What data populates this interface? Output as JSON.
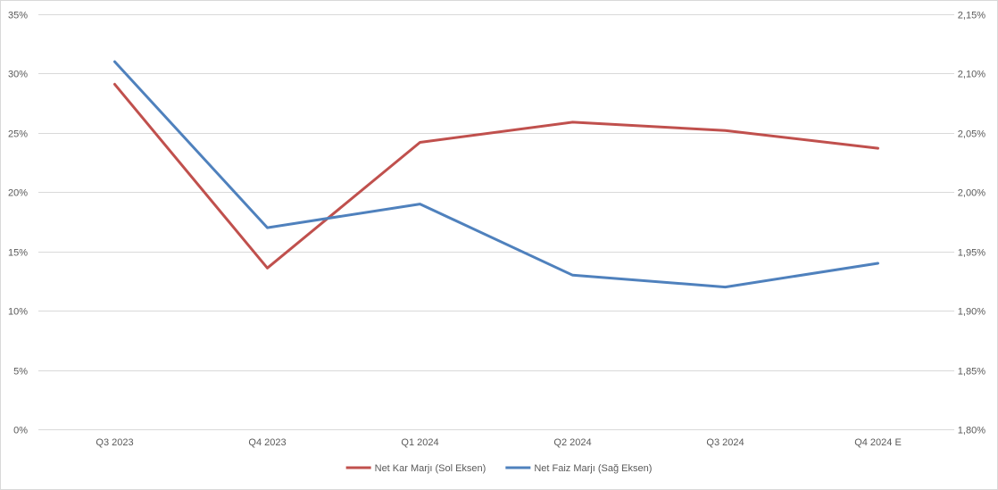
{
  "chart_data": {
    "type": "line",
    "categories": [
      "Q3 2023",
      "Q4 2023",
      "Q1 2024",
      "Q2 2024",
      "Q3 2024",
      "Q4 2024 E"
    ],
    "series": [
      {
        "name": "Net Kar Marjı (Sol Eksen)",
        "axis": "left",
        "color": "#c0504d",
        "values": [
          0.291,
          0.136,
          0.242,
          0.259,
          0.252,
          0.237
        ]
      },
      {
        "name": "Net Faiz Marjı (Sağ Eksen)",
        "axis": "right",
        "color": "#4f81bd",
        "values": [
          0.0211,
          0.0197,
          0.0199,
          0.0193,
          0.0192,
          0.0194
        ]
      }
    ],
    "y_left": {
      "range": [
        0,
        0.35
      ],
      "ticks": [
        0,
        0.05,
        0.1,
        0.15,
        0.2,
        0.25,
        0.3,
        0.35
      ],
      "tick_labels": [
        "0%",
        "5%",
        "10%",
        "15%",
        "20%",
        "25%",
        "30%",
        "35%"
      ]
    },
    "y_right": {
      "range": [
        0.018,
        0.0215
      ],
      "ticks": [
        0.018,
        0.0185,
        0.019,
        0.0195,
        0.02,
        0.0205,
        0.021,
        0.0215
      ],
      "tick_labels": [
        "1,80%",
        "1,85%",
        "1,90%",
        "1,95%",
        "2,00%",
        "2,05%",
        "2,10%",
        "2,15%"
      ]
    },
    "grid": true,
    "legend_position": "bottom",
    "gridline_color": "#d9d9d9"
  }
}
